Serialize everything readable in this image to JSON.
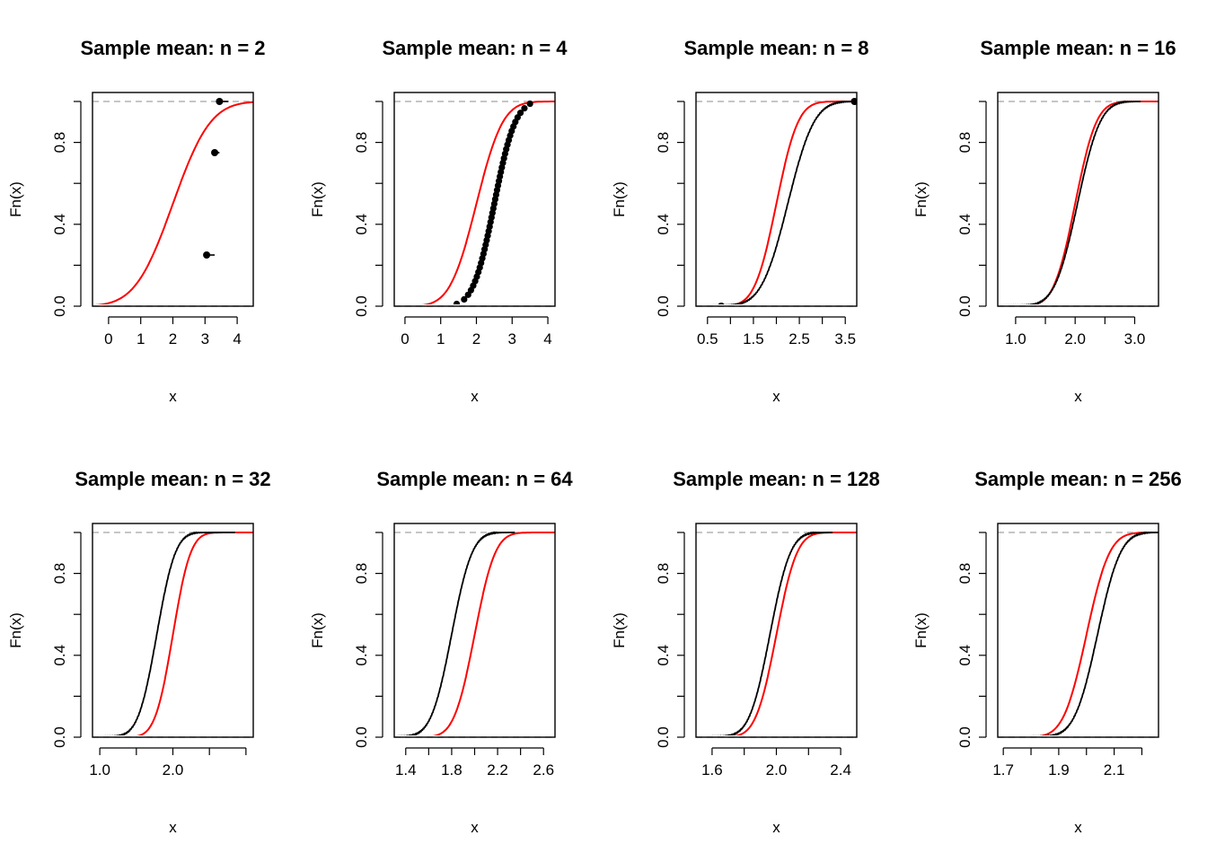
{
  "chart_data": [
    {
      "type": "line",
      "title": "Sample mean: n = 2",
      "xlabel": "x",
      "ylabel": "Fn(x)",
      "xlim": [
        -0.5,
        4.5
      ],
      "ylim": [
        0,
        1
      ],
      "xticks": [
        0,
        1,
        2,
        3,
        4
      ],
      "xtick_labels": [
        "0",
        "1",
        "2",
        "3",
        "4"
      ],
      "yticks": [
        0,
        0.2,
        0.4,
        0.6,
        0.8,
        1.0
      ],
      "ytick_labels": [
        "0.0",
        "",
        "0.4",
        "",
        "0.8",
        ""
      ],
      "theory": {
        "name": "",
        "mean": 2,
        "sd": 0.92,
        "color": "#ff0000"
      },
      "ecdf": {
        "style": "steps",
        "x": [
          2.95,
          3.05,
          3.3,
          3.45
        ],
        "y": [
          0,
          0.25,
          0.75,
          1.0
        ]
      }
    },
    {
      "type": "line",
      "title": "Sample mean: n = 4",
      "xlabel": "x",
      "ylabel": "Fn(x)",
      "xlim": [
        -0.3,
        4.2
      ],
      "ylim": [
        0,
        1
      ],
      "xticks": [
        0,
        1,
        2,
        3,
        4
      ],
      "xtick_labels": [
        "0",
        "1",
        "2",
        "3",
        "4"
      ],
      "yticks": [
        0,
        0.2,
        0.4,
        0.6,
        0.8,
        1.0
      ],
      "ytick_labels": [
        "0.0",
        "",
        "0.4",
        "",
        "0.8",
        ""
      ],
      "theory": {
        "name": "",
        "mean": 2,
        "sd": 0.58,
        "color": "#ff0000"
      },
      "ecdf": {
        "style": "dots",
        "mean": 2.5,
        "sd": 0.46,
        "points": 45,
        "start": 1.05,
        "end": 3.5
      }
    },
    {
      "type": "line",
      "title": "Sample mean: n = 8",
      "xlabel": "x",
      "ylabel": "Fn(x)",
      "xlim": [
        0.25,
        3.75
      ],
      "ylim": [
        0,
        1
      ],
      "xticks": [
        0.5,
        1,
        1.5,
        2,
        2.5,
        3,
        3.5
      ],
      "xtick_labels": [
        "0.5",
        "",
        "1.5",
        "",
        "2.5",
        "",
        "3.5"
      ],
      "yticks": [
        0,
        0.2,
        0.4,
        0.6,
        0.8,
        1.0
      ],
      "ytick_labels": [
        "0.0",
        "",
        "0.4",
        "",
        "0.8",
        ""
      ],
      "theory": {
        "name": "",
        "mean": 2,
        "sd": 0.37,
        "color": "#ff0000"
      },
      "ecdf": {
        "style": "dense",
        "mean": 2.25,
        "sd": 0.45,
        "start": 0.55,
        "end": 3.75
      }
    },
    {
      "type": "line",
      "title": "Sample mean: n = 16",
      "xlabel": "x",
      "ylabel": "Fn(x)",
      "xlim": [
        0.7,
        3.4
      ],
      "ylim": [
        0,
        1
      ],
      "xticks": [
        1.0,
        1.5,
        2.0,
        2.5,
        3.0
      ],
      "xtick_labels": [
        "1.0",
        "",
        "2.0",
        "",
        "3.0"
      ],
      "yticks": [
        0,
        0.2,
        0.4,
        0.6,
        0.8,
        1.0
      ],
      "ytick_labels": [
        "0.0",
        "",
        "0.4",
        "",
        "0.8",
        ""
      ],
      "theory": {
        "name": "",
        "mean": 2,
        "sd": 0.28,
        "color": "#ff0000"
      },
      "ecdf": {
        "style": "line",
        "mean": 2.04,
        "sd": 0.3,
        "start": 0.8,
        "end": 3.1
      }
    },
    {
      "type": "line",
      "title": "Sample mean: n = 32",
      "xlabel": "x",
      "ylabel": "Fn(x)",
      "xlim": [
        0.9,
        3.1
      ],
      "ylim": [
        0,
        1
      ],
      "xticks": [
        1.0,
        1.5,
        2.0,
        2.5,
        3.0
      ],
      "xtick_labels": [
        "1.0",
        "",
        "2.0",
        "",
        ""
      ],
      "yticks": [
        0,
        0.2,
        0.4,
        0.6,
        0.8,
        1.0
      ],
      "ytick_labels": [
        "0.0",
        "",
        "0.4",
        "",
        "0.8",
        ""
      ],
      "theory": {
        "name": "",
        "mean": 2,
        "sd": 0.19,
        "color": "#ff0000"
      },
      "ecdf": {
        "style": "line",
        "mean": 1.78,
        "sd": 0.2,
        "start": 1.05,
        "end": 2.85
      }
    },
    {
      "type": "line",
      "title": "Sample mean: n = 64",
      "xlabel": "x",
      "ylabel": "Fn(x)",
      "xlim": [
        1.3,
        2.7
      ],
      "ylim": [
        0,
        1
      ],
      "xticks": [
        1.4,
        1.6,
        1.8,
        2.0,
        2.2,
        2.4,
        2.6
      ],
      "xtick_labels": [
        "1.4",
        "",
        "1.8",
        "",
        "2.2",
        "",
        "2.6"
      ],
      "yticks": [
        0,
        0.2,
        0.4,
        0.6,
        0.8,
        1.0
      ],
      "ytick_labels": [
        "0.0",
        "",
        "0.4",
        "",
        "0.8",
        ""
      ],
      "theory": {
        "name": "",
        "mean": 2,
        "sd": 0.14,
        "color": "#ff0000"
      },
      "ecdf": {
        "style": "line",
        "mean": 1.8,
        "sd": 0.14,
        "start": 1.33,
        "end": 2.35
      }
    },
    {
      "type": "line",
      "title": "Sample mean: n = 128",
      "xlabel": "x",
      "ylabel": "Fn(x)",
      "xlim": [
        1.5,
        2.5
      ],
      "ylim": [
        0,
        1
      ],
      "xticks": [
        1.6,
        1.8,
        2.0,
        2.2,
        2.4
      ],
      "xtick_labels": [
        "1.6",
        "",
        "2.0",
        "",
        "2.4"
      ],
      "yticks": [
        0,
        0.2,
        0.4,
        0.6,
        0.8,
        1.0
      ],
      "ytick_labels": [
        "0.0",
        "",
        "0.4",
        "",
        "0.8",
        ""
      ],
      "theory": {
        "name": "",
        "mean": 2,
        "sd": 0.1,
        "color": "#ff0000"
      },
      "ecdf": {
        "style": "line",
        "mean": 1.96,
        "sd": 0.1,
        "start": 1.6,
        "end": 2.35
      }
    },
    {
      "type": "line",
      "title": "Sample mean: n = 256",
      "xlabel": "x",
      "ylabel": "Fn(x)",
      "xlim": [
        1.68,
        2.26
      ],
      "ylim": [
        0,
        1
      ],
      "xticks": [
        1.7,
        1.8,
        1.9,
        2.0,
        2.1,
        2.2
      ],
      "xtick_labels": [
        "1.7",
        "",
        "1.9",
        "",
        "2.1",
        ""
      ],
      "yticks": [
        0,
        0.2,
        0.4,
        0.6,
        0.8,
        1.0
      ],
      "ytick_labels": [
        "0.0",
        "",
        "0.4",
        "",
        "0.8",
        ""
      ],
      "theory": {
        "name": "",
        "mean": 2,
        "sd": 0.065,
        "color": "#ff0000"
      },
      "ecdf": {
        "style": "line",
        "mean": 2.04,
        "sd": 0.065,
        "start": 1.8,
        "end": 2.26
      }
    }
  ]
}
